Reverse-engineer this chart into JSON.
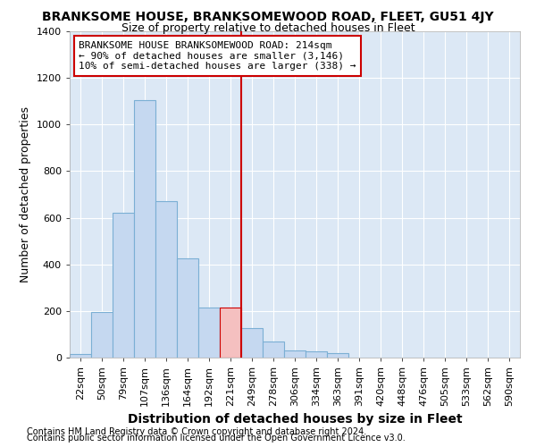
{
  "title": "BRANKSOME HOUSE, BRANKSOMEWOOD ROAD, FLEET, GU51 4JY",
  "subtitle": "Size of property relative to detached houses in Fleet",
  "xlabel": "Distribution of detached houses by size in Fleet",
  "ylabel": "Number of detached properties",
  "categories": [
    "22sqm",
    "50sqm",
    "79sqm",
    "107sqm",
    "136sqm",
    "164sqm",
    "192sqm",
    "221sqm",
    "249sqm",
    "278sqm",
    "306sqm",
    "334sqm",
    "363sqm",
    "391sqm",
    "420sqm",
    "448sqm",
    "476sqm",
    "505sqm",
    "533sqm",
    "562sqm",
    "590sqm"
  ],
  "values": [
    15,
    195,
    620,
    1105,
    670,
    425,
    215,
    215,
    125,
    70,
    30,
    25,
    20,
    0,
    0,
    0,
    0,
    0,
    0,
    0,
    0
  ],
  "highlight_index": 7,
  "bar_color": "#c5d8f0",
  "bar_edge_color": "#7bafd4",
  "highlight_bar_color": "#f5c0c0",
  "highlight_bar_edge": "#cc0000",
  "highlight_line_color": "#cc0000",
  "annotation_text": "BRANKSOME HOUSE BRANKSOMEWOOD ROAD: 214sqm\n← 90% of detached houses are smaller (3,146)\n10% of semi-detached houses are larger (338) →",
  "annotation_box_color": "#ffffff",
  "annotation_box_edge": "#cc0000",
  "footer1": "Contains HM Land Registry data © Crown copyright and database right 2024.",
  "footer2": "Contains public sector information licensed under the Open Government Licence v3.0.",
  "ylim": [
    0,
    1400
  ],
  "fig_bg_color": "#ffffff",
  "plot_bg_color": "#dce8f5",
  "grid_color": "#ffffff",
  "title_fontsize": 10,
  "subtitle_fontsize": 9,
  "axis_label_fontsize": 9,
  "tick_fontsize": 8,
  "footer_fontsize": 7,
  "yticks": [
    0,
    200,
    400,
    600,
    800,
    1000,
    1200,
    1400
  ]
}
